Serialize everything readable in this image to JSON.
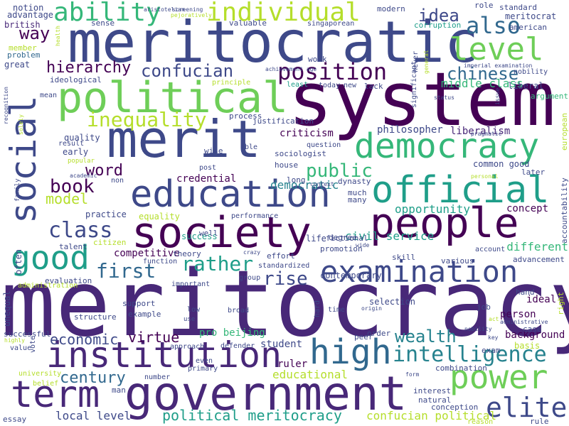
{
  "palette": [
    "#440154",
    "#482878",
    "#3e4989",
    "#31688e",
    "#26828e",
    "#1f9e89",
    "#35b779",
    "#6ece58",
    "#b5de2b",
    "#fde725"
  ],
  "words": [
    {
      "text": "meritocracy",
      "color": "#482878"
    },
    {
      "text": "system",
      "color": "#440154"
    },
    {
      "text": "meritocratic",
      "color": "#3e4989"
    },
    {
      "text": "merit",
      "color": "#3e4989"
    },
    {
      "text": "government",
      "color": "#482878"
    },
    {
      "text": "political",
      "color": "#6ece58"
    },
    {
      "text": "society",
      "color": "#440154"
    },
    {
      "text": "people",
      "color": "#440154"
    },
    {
      "text": "social",
      "color": "#3e4989"
    },
    {
      "text": "education",
      "color": "#3e4989"
    },
    {
      "text": "official",
      "color": "#1f9e89"
    },
    {
      "text": "examination",
      "color": "#3e4989"
    },
    {
      "text": "institution",
      "color": "#482878"
    },
    {
      "text": "democracy",
      "color": "#35b779"
    },
    {
      "text": "high",
      "color": "#31688e"
    },
    {
      "text": "term",
      "color": "#482878"
    },
    {
      "text": "power",
      "color": "#6ece58"
    },
    {
      "text": "elite",
      "color": "#3e4989"
    },
    {
      "text": "good",
      "color": "#1f9e89"
    },
    {
      "text": "level",
      "color": "#6ece58"
    },
    {
      "text": "ability",
      "color": "#35b779"
    },
    {
      "text": "individual",
      "color": "#b5de2b"
    },
    {
      "text": "also",
      "color": "#31688e"
    },
    {
      "text": "position",
      "color": "#440154"
    },
    {
      "text": "class",
      "color": "#3e4989"
    },
    {
      "text": "inequality",
      "color": "#b5de2b"
    },
    {
      "text": "intelligence",
      "color": "#26828e"
    },
    {
      "text": "rather",
      "color": "#1f9e89"
    },
    {
      "text": "rise",
      "color": "#3e4989"
    },
    {
      "text": "first",
      "color": "#31688e"
    },
    {
      "text": "book",
      "color": "#440154"
    },
    {
      "text": "public",
      "color": "#35b779"
    },
    {
      "text": "wealth",
      "color": "#26828e"
    },
    {
      "text": "confucian",
      "color": "#3e4989"
    },
    {
      "text": "chinese",
      "color": "#31688e"
    },
    {
      "text": "idea",
      "color": "#3e4989"
    },
    {
      "text": "way",
      "color": "#440154"
    },
    {
      "text": "hierarchy",
      "color": "#440154"
    },
    {
      "text": "century",
      "color": "#31688e"
    },
    {
      "text": "model",
      "color": "#b5de2b"
    },
    {
      "text": "word",
      "color": "#440154"
    },
    {
      "text": "virtue",
      "color": "#440154"
    },
    {
      "text": "economic",
      "color": "#3e4989"
    },
    {
      "text": "political meritocracy",
      "color": "#1f9e89"
    },
    {
      "text": "local level",
      "color": "#3e4989"
    },
    {
      "text": "confucian political",
      "color": "#b5de2b"
    },
    {
      "text": "educational",
      "color": "#b5de2b"
    },
    {
      "text": "civil service",
      "color": "#1f9e89"
    },
    {
      "text": "democratic",
      "color": "#26828e"
    },
    {
      "text": "opportunity",
      "color": "#1f9e89"
    },
    {
      "text": "different",
      "color": "#35b779"
    },
    {
      "text": "middle class",
      "color": "#35b779"
    },
    {
      "text": "liberalism",
      "color": "#482878"
    },
    {
      "text": "philosopher",
      "color": "#3e4989"
    },
    {
      "text": "criticism",
      "color": "#440154"
    },
    {
      "text": "credential",
      "color": "#440154"
    },
    {
      "text": "competitive",
      "color": "#440154"
    },
    {
      "text": "pro beijing",
      "color": "#35b779"
    },
    {
      "text": "student",
      "color": "#3e4989"
    },
    {
      "text": "ruler",
      "color": "#440154"
    },
    {
      "text": "ideal",
      "color": "#440154"
    },
    {
      "text": "person",
      "color": "#440154"
    },
    {
      "text": "background",
      "color": "#440154"
    },
    {
      "text": "concept",
      "color": "#440154"
    },
    {
      "text": "success",
      "color": "#1f9e89"
    },
    {
      "text": "equality",
      "color": "#b5de2b"
    },
    {
      "text": "practice",
      "color": "#3e4989"
    },
    {
      "text": "quality",
      "color": "#3e4989"
    },
    {
      "text": "early",
      "color": "#3e4989"
    },
    {
      "text": "popular",
      "color": "#b5de2b"
    },
    {
      "text": "advantage",
      "color": "#3e4989"
    },
    {
      "text": "notion",
      "color": "#3e4989"
    },
    {
      "text": "british",
      "color": "#482878"
    },
    {
      "text": "member",
      "color": "#b5de2b"
    },
    {
      "text": "problem",
      "color": "#31688e"
    },
    {
      "text": "great",
      "color": "#3e4989"
    },
    {
      "text": "ideological",
      "color": "#3e4989"
    },
    {
      "text": "sense",
      "color": "#3e4989"
    },
    {
      "text": "valuable",
      "color": "#3e4989"
    },
    {
      "text": "singaporean",
      "color": "#3e4989"
    },
    {
      "text": "modern",
      "color": "#3e4989"
    },
    {
      "text": "role",
      "color": "#3e4989"
    },
    {
      "text": "standard",
      "color": "#3e4989"
    },
    {
      "text": "meritocrat",
      "color": "#3e4989"
    },
    {
      "text": "corruption",
      "color": "#1f9e89"
    },
    {
      "text": "american",
      "color": "#3e4989"
    },
    {
      "text": "nobility",
      "color": "#3e4989"
    },
    {
      "text": "liberal",
      "color": "#3e4989"
    },
    {
      "text": "argument",
      "color": "#35b779"
    },
    {
      "text": "principle",
      "color": "#b5de2b"
    },
    {
      "text": "least",
      "color": "#1f9e89"
    },
    {
      "text": "today",
      "color": "#3e4989"
    },
    {
      "text": "new",
      "color": "#3e4989"
    },
    {
      "text": "lack",
      "color": "#3e4989"
    },
    {
      "text": "process",
      "color": "#3e4989"
    },
    {
      "text": "justification",
      "color": "#3e4989"
    },
    {
      "text": "work",
      "color": "#3e4989"
    },
    {
      "text": "mean",
      "color": "#3e4989"
    },
    {
      "text": "result",
      "color": "#3e4989"
    },
    {
      "text": "wise",
      "color": "#3e4989"
    },
    {
      "text": "able",
      "color": "#3e4989"
    },
    {
      "text": "question",
      "color": "#3e4989"
    },
    {
      "text": "sociologist",
      "color": "#3e4989"
    },
    {
      "text": "house",
      "color": "#3e4989"
    },
    {
      "text": "long",
      "color": "#3e4989"
    },
    {
      "text": "dynasty",
      "color": "#3e4989"
    },
    {
      "text": "common good",
      "color": "#3e4989"
    },
    {
      "text": "later",
      "color": "#3e4989"
    },
    {
      "text": "post",
      "color": "#3e4989"
    },
    {
      "text": "non",
      "color": "#3e4989"
    },
    {
      "text": "much",
      "color": "#3e4989"
    },
    {
      "text": "many",
      "color": "#3e4989"
    },
    {
      "text": "performance",
      "color": "#3e4989"
    },
    {
      "text": "degree",
      "color": "#3e4989"
    },
    {
      "text": "life",
      "color": "#3e4989"
    },
    {
      "text": "well",
      "color": "#3e4989"
    },
    {
      "text": "talent",
      "color": "#3e4989"
    },
    {
      "text": "citizen",
      "color": "#b5de2b"
    },
    {
      "text": "theory",
      "color": "#3e4989"
    },
    {
      "text": "function",
      "color": "#3e4989"
    },
    {
      "text": "effort",
      "color": "#3e4989"
    },
    {
      "text": "fictional",
      "color": "#3e4989"
    },
    {
      "text": "promotion",
      "color": "#3e4989"
    },
    {
      "text": "contemporary",
      "color": "#3e4989"
    },
    {
      "text": "skill",
      "color": "#3e4989"
    },
    {
      "text": "account",
      "color": "#3e4989"
    },
    {
      "text": "advancement",
      "color": "#3e4989"
    },
    {
      "text": "standardized",
      "color": "#3e4989"
    },
    {
      "text": "group",
      "color": "#3e4989"
    },
    {
      "text": "various",
      "color": "#3e4989"
    },
    {
      "text": "evaluation",
      "color": "#3e4989"
    },
    {
      "text": "important",
      "color": "#3e4989"
    },
    {
      "text": "administration",
      "color": "#b5de2b"
    },
    {
      "text": "support",
      "color": "#3e4989"
    },
    {
      "text": "example",
      "color": "#3e4989"
    },
    {
      "text": "structure",
      "color": "#3e4989"
    },
    {
      "text": "low",
      "color": "#3e4989"
    },
    {
      "text": "use",
      "color": "#3e4989"
    },
    {
      "text": "broad",
      "color": "#3e4989"
    },
    {
      "text": "selection",
      "color": "#3e4989"
    },
    {
      "text": "time",
      "color": "#3e4989"
    },
    {
      "text": "job",
      "color": "#3e4989"
    },
    {
      "text": "hand",
      "color": "#3e4989"
    },
    {
      "text": "case",
      "color": "#3e4989"
    },
    {
      "text": "exam",
      "color": "#3e4989"
    },
    {
      "text": "basis",
      "color": "#b5de2b"
    },
    {
      "text": "peer",
      "color": "#3e4989"
    },
    {
      "text": "order",
      "color": "#3e4989"
    },
    {
      "text": "approach",
      "color": "#3e4989"
    },
    {
      "text": "defender",
      "color": "#3e4989"
    },
    {
      "text": "successful",
      "color": "#3e4989"
    },
    {
      "text": "value",
      "color": "#3e4989"
    },
    {
      "text": "even",
      "color": "#3e4989"
    },
    {
      "text": "primary",
      "color": "#3e4989"
    },
    {
      "text": "number",
      "color": "#3e4989"
    },
    {
      "text": "combination",
      "color": "#3e4989"
    },
    {
      "text": "interest",
      "color": "#3e4989"
    },
    {
      "text": "natural",
      "color": "#3e4989"
    },
    {
      "text": "conception",
      "color": "#3e4989"
    },
    {
      "text": "university",
      "color": "#b5de2b"
    },
    {
      "text": "belief",
      "color": "#b5de2b"
    },
    {
      "text": "man",
      "color": "#3e4989"
    },
    {
      "text": "essay",
      "color": "#3e4989"
    },
    {
      "text": "reason",
      "color": "#b5de2b"
    },
    {
      "text": "rule",
      "color": "#3e4989"
    },
    {
      "text": "unequal",
      "color": "#3e4989"
    },
    {
      "text": "often",
      "color": "#3e4989"
    },
    {
      "text": "vote",
      "color": "#3e4989"
    },
    {
      "text": "family",
      "color": "#3e4989"
    },
    {
      "text": "solely",
      "color": "#b5de2b"
    },
    {
      "text": "significant",
      "color": "#3e4989"
    },
    {
      "text": "european",
      "color": "#b5de2b"
    },
    {
      "text": "accountability",
      "color": "#3e4989"
    },
    {
      "text": "right",
      "color": "#b5de2b"
    },
    {
      "text": "hard",
      "color": "#3e4989"
    },
    {
      "text": "never",
      "color": "#3e4989"
    },
    {
      "text": "general",
      "color": "#b5de2b"
    },
    {
      "text": "aristotelian",
      "color": "#3e4989"
    },
    {
      "text": "screening",
      "color": "#3e4989"
    },
    {
      "text": "pejoratively",
      "color": "#b5de2b"
    },
    {
      "text": "imperial examination",
      "color": "#3e4989"
    },
    {
      "text": "achievement age",
      "color": "#3e4989"
    },
    {
      "text": "status",
      "color": "#3e4989"
    },
    {
      "text": "pragmatic",
      "color": "#3e4989"
    },
    {
      "text": "issue",
      "color": "#3e4989"
    },
    {
      "text": "recognition",
      "color": "#3e4989"
    },
    {
      "text": "health",
      "color": "#b5de2b"
    },
    {
      "text": "academic",
      "color": "#3e4989"
    },
    {
      "text": "personal",
      "color": "#b5de2b"
    },
    {
      "text": "context",
      "color": "#3e4989"
    },
    {
      "text": "wide",
      "color": "#3e4989"
    },
    {
      "text": "crazy",
      "color": "#3e4989"
    },
    {
      "text": "origin",
      "color": "#3e4989"
    },
    {
      "text": "act",
      "color": "#b5de2b"
    },
    {
      "text": "key",
      "color": "#3e4989"
    },
    {
      "text": "nobility",
      "color": "#3e4989"
    },
    {
      "text": "administrative",
      "color": "#3e4989"
    },
    {
      "text": "highly",
      "color": "#b5de2b"
    },
    {
      "text": "form",
      "color": "#3e4989"
    }
  ]
}
